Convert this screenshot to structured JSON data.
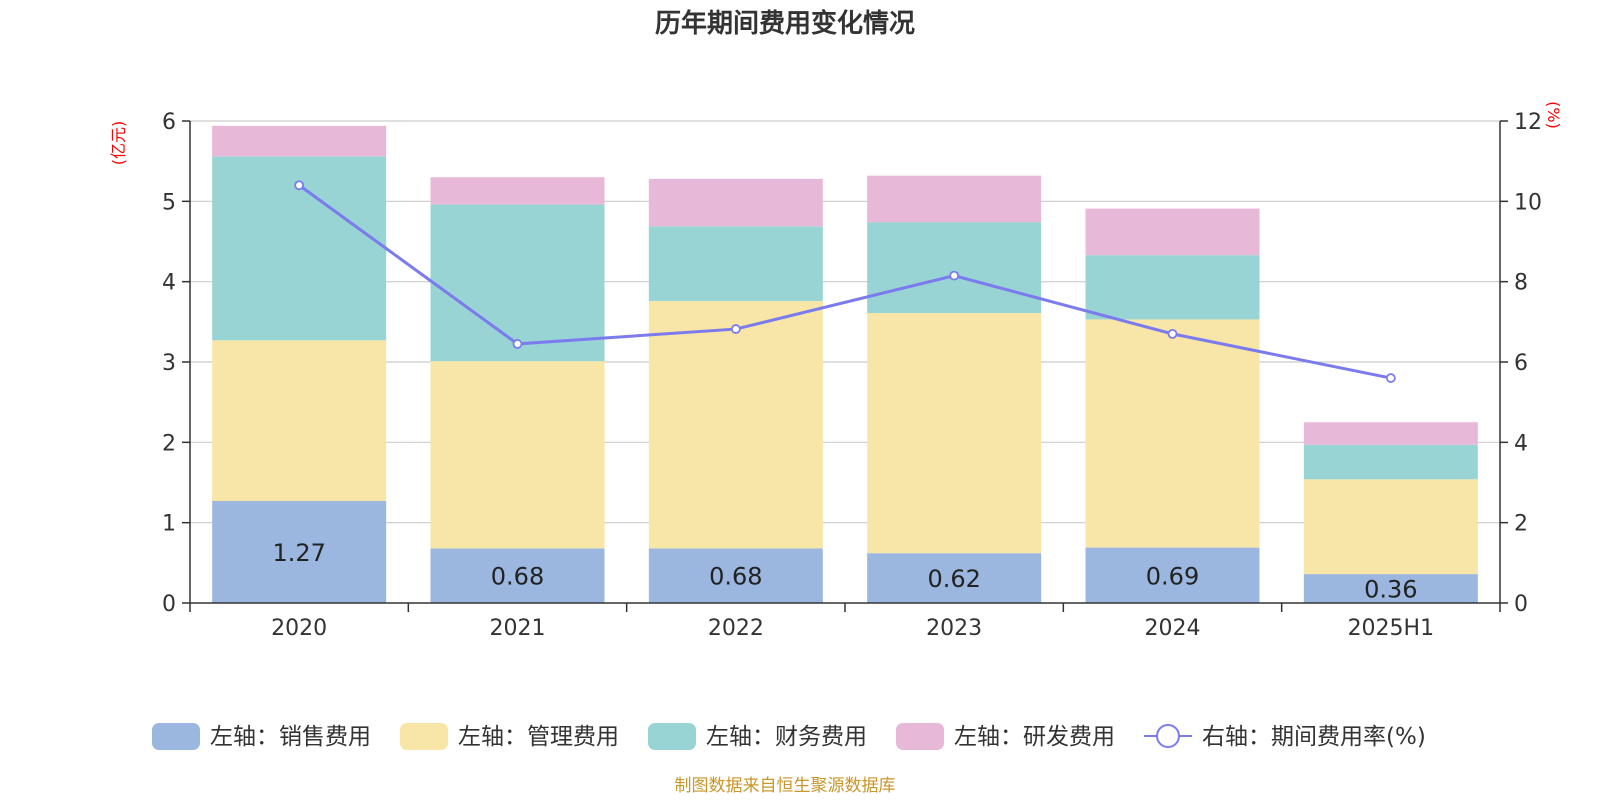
{
  "title": "历年期间费用变化情况",
  "source": "制图数据来自恒生聚源数据库",
  "chart_data": {
    "type": "bar",
    "stacked": true,
    "categories": [
      "2020",
      "2021",
      "2022",
      "2023",
      "2024",
      "2025H1"
    ],
    "y_left": {
      "unit": "(亿元)",
      "range": [
        0,
        6
      ],
      "ticks": [
        "0",
        "1",
        "2",
        "3",
        "4",
        "5",
        "6"
      ]
    },
    "y_right": {
      "unit": "(%)",
      "range": [
        0,
        12
      ],
      "ticks": [
        "0",
        "2",
        "4",
        "6",
        "8",
        "10",
        "12"
      ]
    },
    "series": [
      {
        "name": "左轴：销售费用",
        "axis": "left",
        "color": "#9bb7e0",
        "values": [
          1.27,
          0.68,
          0.68,
          0.62,
          0.69,
          0.36
        ],
        "labels": [
          "1.27",
          "0.68",
          "0.68",
          "0.62",
          "0.69",
          "0.36"
        ]
      },
      {
        "name": "左轴：管理费用",
        "axis": "left",
        "color": "#f7e6a7",
        "values": [
          2.0,
          2.33,
          3.08,
          2.99,
          2.84,
          1.18
        ]
      },
      {
        "name": "左轴：财务费用",
        "axis": "left",
        "color": "#98d4d4",
        "values": [
          2.29,
          1.95,
          0.93,
          1.13,
          0.8,
          0.43
        ]
      },
      {
        "name": "左轴：研发费用",
        "axis": "left",
        "color": "#e8b8d8",
        "values": [
          0.38,
          0.34,
          0.59,
          0.58,
          0.58,
          0.28
        ]
      }
    ],
    "line": {
      "name": "右轴：期间费用率(%)",
      "axis": "right",
      "color": "#7b7bee",
      "values": [
        10.4,
        6.45,
        6.82,
        8.15,
        6.7,
        5.6
      ]
    },
    "grid": true,
    "legend_position": "bottom"
  }
}
